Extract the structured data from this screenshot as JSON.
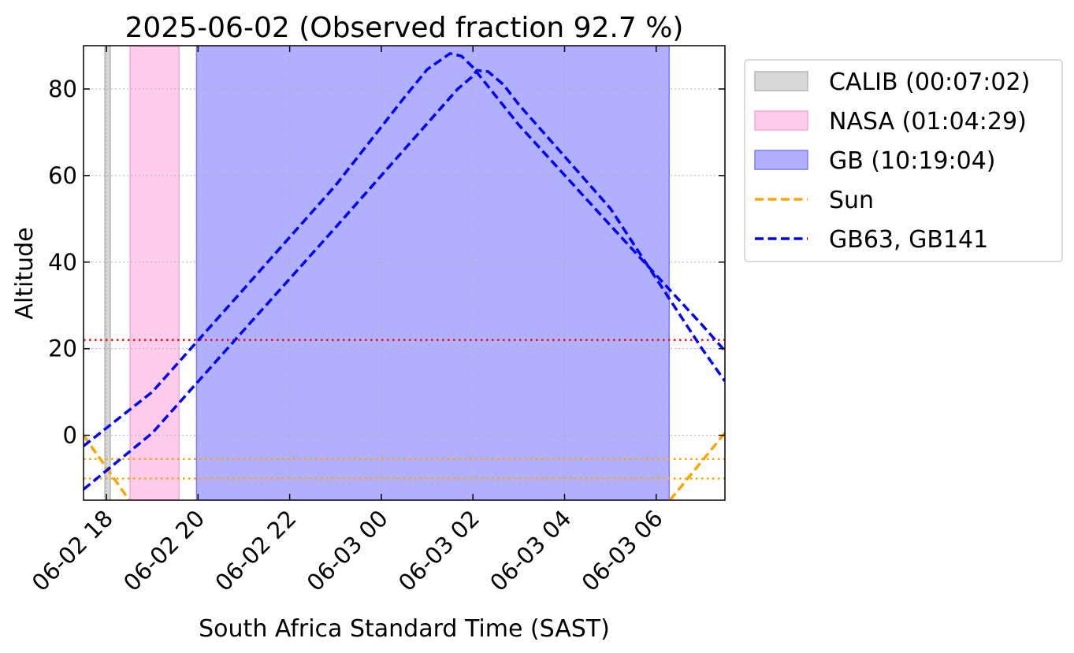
{
  "chart_data": {
    "type": "line",
    "title": "2025-06-02 (Observed fraction 92.7 %)",
    "xlabel": "South Africa Standard Time (SAST)",
    "ylabel": "Altitude",
    "xlim": [
      "2025-06-02 17:30",
      "2025-06-03 07:30"
    ],
    "ylim": [
      -15,
      90
    ],
    "x_ticks": [
      {
        "t": "2025-06-02 18:00",
        "label": "06-02 18"
      },
      {
        "t": "2025-06-02 20:00",
        "label": "06-02 20"
      },
      {
        "t": "2025-06-02 22:00",
        "label": "06-02 22"
      },
      {
        "t": "2025-06-03 00:00",
        "label": "06-03 00"
      },
      {
        "t": "2025-06-03 02:00",
        "label": "06-03 02"
      },
      {
        "t": "2025-06-03 04:00",
        "label": "06-03 04"
      },
      {
        "t": "2025-06-03 06:00",
        "label": "06-03 06"
      }
    ],
    "y_ticks": [
      0,
      20,
      40,
      60,
      80
    ],
    "grid": true,
    "legend_position": "outside-right-top",
    "spans": [
      {
        "name": "CALIB (00:07:02)",
        "start": "2025-06-02 17:58",
        "end": "2025-06-02 18:05",
        "color": "#d8d8d8",
        "edge": "#b5b5b5"
      },
      {
        "name": "NASA (01:04:29)",
        "start": "2025-06-02 18:31",
        "end": "2025-06-02 19:35",
        "color": "#ffccec",
        "edge": "#f2a9d6"
      },
      {
        "name": "GB (10:19:04)",
        "start": "2025-06-02 19:58",
        "end": "2025-06-03 06:17",
        "color": "#b0b0ff",
        "edge": "#7a7aff"
      }
    ],
    "hlines": [
      {
        "y": 22,
        "color": "#ff0000",
        "style": "dotted"
      },
      {
        "y": -5.5,
        "color": "#ffa500",
        "style": "dotted"
      },
      {
        "y": -10,
        "color": "#ffa500",
        "style": "dotted"
      }
    ],
    "series": [
      {
        "name": "Sun",
        "color": "#ffa500",
        "style": "dashed",
        "segments": [
          [
            {
              "x": "2025-06-02 17:30",
              "y": 0
            },
            {
              "x": "2025-06-02 18:30",
              "y": -15
            }
          ],
          [
            {
              "x": "2025-06-03 06:18",
              "y": -15
            },
            {
              "x": "2025-06-03 07:30",
              "y": 0.5
            }
          ]
        ]
      },
      {
        "name": "GB63, GB141",
        "color": "#0000ff",
        "style": "dashed",
        "segments": [
          [
            {
              "x": "2025-06-02 17:30",
              "y": -2.5
            },
            {
              "x": "2025-06-02 19:00",
              "y": 10
            },
            {
              "x": "2025-06-02 21:00",
              "y": 33.8
            },
            {
              "x": "2025-06-02 23:00",
              "y": 57.7
            },
            {
              "x": "2025-06-03 00:30",
              "y": 78
            },
            {
              "x": "2025-06-03 01:00",
              "y": 84.5
            },
            {
              "x": "2025-06-03 01:30",
              "y": 88.2
            },
            {
              "x": "2025-06-03 01:45",
              "y": 87.6
            },
            {
              "x": "2025-06-03 02:00",
              "y": 85
            },
            {
              "x": "2025-06-03 03:00",
              "y": 71.7
            },
            {
              "x": "2025-06-03 05:00",
              "y": 48.5
            },
            {
              "x": "2025-06-03 07:00",
              "y": 25.5
            },
            {
              "x": "2025-06-03 07:30",
              "y": 19.5
            }
          ],
          [
            {
              "x": "2025-06-02 17:30",
              "y": -12.5
            },
            {
              "x": "2025-06-02 19:00",
              "y": 0.5
            },
            {
              "x": "2025-06-02 21:00",
              "y": 24.3
            },
            {
              "x": "2025-06-02 23:00",
              "y": 48
            },
            {
              "x": "2025-06-03 01:00",
              "y": 72
            },
            {
              "x": "2025-06-03 01:40",
              "y": 80
            },
            {
              "x": "2025-06-03 02:00",
              "y": 83
            },
            {
              "x": "2025-06-03 02:05",
              "y": 84.3
            },
            {
              "x": "2025-06-03 02:20",
              "y": 84
            },
            {
              "x": "2025-06-03 02:40",
              "y": 81
            },
            {
              "x": "2025-06-03 03:00",
              "y": 76.4
            },
            {
              "x": "2025-06-03 05:00",
              "y": 52.4
            },
            {
              "x": "2025-06-03 07:00",
              "y": 20
            },
            {
              "x": "2025-06-03 07:30",
              "y": 12.5
            }
          ]
        ]
      }
    ],
    "legend": [
      {
        "label": "CALIB (00:07:02)",
        "kind": "patch",
        "color": "#d8d8d8",
        "edge": "#b5b5b5"
      },
      {
        "label": "NASA (01:04:29)",
        "kind": "patch",
        "color": "#ffccec",
        "edge": "#f2a9d6"
      },
      {
        "label": "GB (10:19:04)",
        "kind": "patch",
        "color": "#b0b0ff",
        "edge": "#7a7aff"
      },
      {
        "label": "Sun",
        "kind": "line",
        "color": "#ffa500"
      },
      {
        "label": "GB63, GB141",
        "kind": "line",
        "color": "#0000ff"
      }
    ]
  }
}
